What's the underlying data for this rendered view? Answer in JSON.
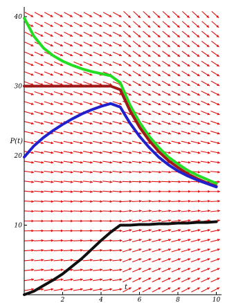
{
  "chart_data": {
    "type": "line",
    "title": "",
    "xlabel": "t",
    "ylabel": "P(t)",
    "xlim": [
      0,
      10.2
    ],
    "ylim": [
      0,
      41
    ],
    "x_ticks": [
      "2",
      "4",
      "6",
      "8",
      "10"
    ],
    "y_ticks": [
      "10",
      "20",
      "30",
      "40"
    ],
    "grid": false,
    "legend": "none",
    "field_color": "#e01010",
    "field": {
      "type": "direction_field",
      "x_range": [
        0,
        10.2
      ],
      "y_range": [
        0,
        41
      ],
      "rule": "slope = 0.5 - 0.05*P for t < 5; slope = 1.5 - 0.1*P for t >= 5"
    },
    "series": [
      {
        "color": "#22dd22",
        "x": [
          0,
          0.5,
          1,
          1.5,
          2,
          2.5,
          3,
          3.5,
          4,
          4.5,
          5,
          5.5,
          6,
          6.5,
          7,
          7.5,
          8,
          8.5,
          9,
          9.5,
          10
        ],
        "y": [
          39.8,
          37.2,
          35.5,
          34.4,
          33.6,
          33.0,
          32.5,
          32.1,
          31.8,
          31.5,
          30.5,
          27.3,
          24.8,
          22.8,
          21.2,
          19.8,
          18.8,
          17.9,
          17.2,
          16.6,
          16.0
        ]
      },
      {
        "color": "#a01818",
        "x": [
          0,
          0.5,
          1,
          1.5,
          2,
          2.5,
          3,
          3.5,
          4,
          4.5,
          5,
          5.5,
          6,
          6.5,
          7,
          7.5,
          8,
          8.5,
          9,
          9.5,
          10
        ],
        "y": [
          30.0,
          30.0,
          30.0,
          30.0,
          30.0,
          30.0,
          30.0,
          30.0,
          30.0,
          30.0,
          29.5,
          26.5,
          24.1,
          22.2,
          20.6,
          19.3,
          18.3,
          17.4,
          16.7,
          16.1,
          15.6
        ]
      },
      {
        "color": "#2020cc",
        "x": [
          0,
          0.5,
          1,
          1.5,
          2,
          2.5,
          3,
          3.5,
          4,
          4.5,
          5,
          5.5,
          6,
          6.5,
          7,
          7.5,
          8,
          8.5,
          9,
          9.5,
          10
        ],
        "y": [
          19.8,
          21.4,
          22.6,
          23.6,
          24.5,
          25.3,
          26.0,
          26.6,
          27.1,
          27.5,
          27.0,
          24.7,
          22.8,
          21.2,
          19.8,
          18.7,
          17.8,
          17.1,
          16.5,
          16.0,
          15.5
        ]
      },
      {
        "color": "#101010",
        "x": [
          0,
          0.5,
          1,
          1.5,
          2,
          2.5,
          3,
          3.5,
          4,
          4.5,
          5,
          5.5,
          6,
          6.5,
          7,
          7.5,
          8,
          8.5,
          9,
          9.5,
          10
        ],
        "y": [
          0.0,
          0.5,
          1.3,
          2.1,
          3.0,
          4.1,
          5.2,
          6.5,
          7.8,
          9.0,
          10.0,
          10.0,
          10.1,
          10.1,
          10.2,
          10.2,
          10.3,
          10.3,
          10.4,
          10.4,
          10.5
        ]
      }
    ]
  }
}
